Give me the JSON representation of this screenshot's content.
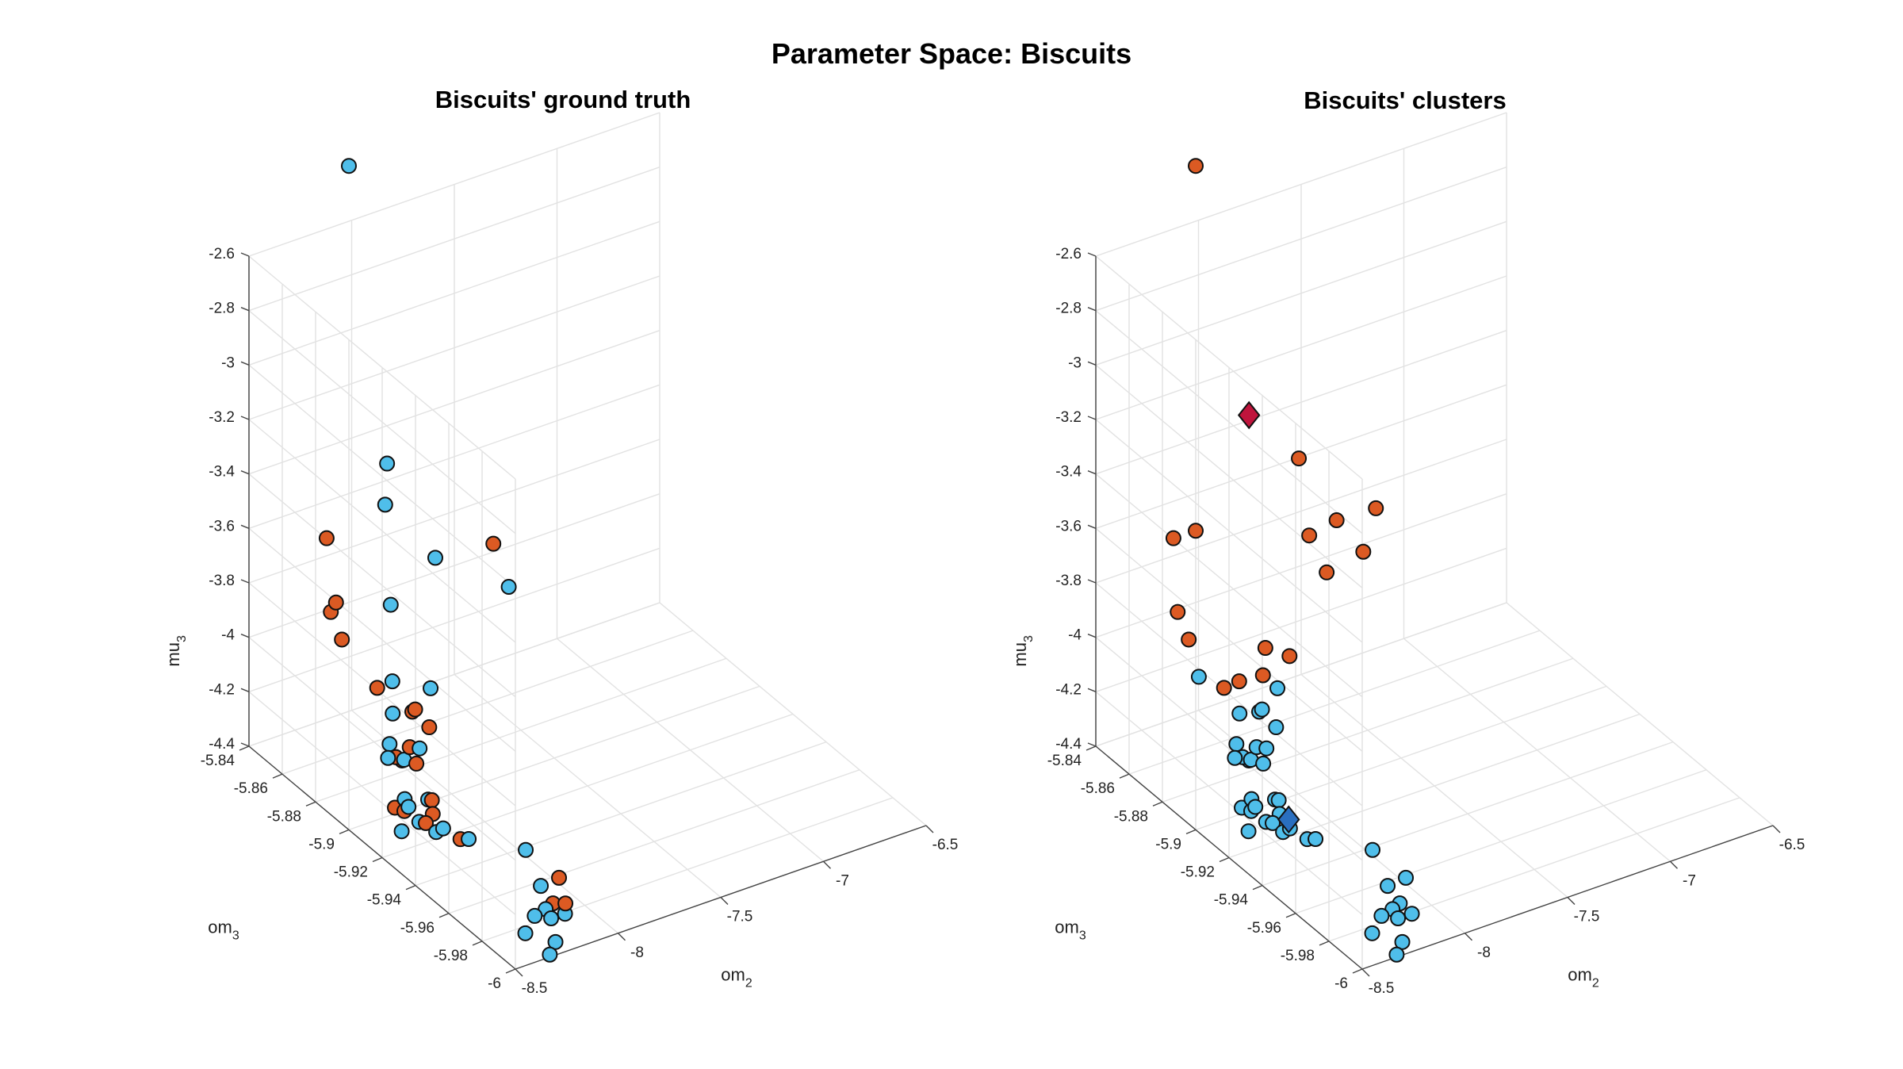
{
  "figure": {
    "title": "Parameter Space: Biscuits"
  },
  "colors": {
    "cyan": "#4FBEEA",
    "orange": "#DC5A23",
    "crimson": "#C0143C",
    "blue": "#2A6FC0"
  },
  "chart_data": [
    {
      "type": "scatter3d",
      "title": "Biscuits' ground truth",
      "xlabel": "om",
      "xlabel_sub": "2",
      "ylabel": "om",
      "ylabel_sub": "3",
      "zlabel": "mu",
      "zlabel_sub": "3",
      "xlim": [
        -8.5,
        -6.5
      ],
      "ylim": [
        -6,
        -5.84
      ],
      "zlim": [
        -4.4,
        -2.6
      ],
      "xticks": [
        "-8.5",
        "-8",
        "-7.5",
        "-7",
        "-6.5"
      ],
      "yticks": [
        "-5.84",
        "-5.86",
        "-5.88",
        "-5.9",
        "-5.92",
        "-5.94",
        "-5.96",
        "-5.98",
        "-6"
      ],
      "zticks": [
        "-2.6",
        "-2.8",
        "-3",
        "-3.2",
        "-3.4",
        "-3.6",
        "-3.8",
        "-4",
        "-4.2",
        "-4.4"
      ],
      "points": [
        {
          "x": -8.2,
          "y": -5.863,
          "z": -2.23,
          "c": "cyan"
        },
        {
          "x": -8.43,
          "y": -5.878,
          "z": -3.46,
          "c": "orange"
        },
        {
          "x": -8.08,
          "y": -5.87,
          "z": -3.47,
          "c": "cyan"
        },
        {
          "x": -7.86,
          "y": -5.844,
          "z": -3.51,
          "c": "cyan"
        },
        {
          "x": -8.45,
          "y": -5.883,
          "z": -3.7,
          "c": "orange"
        },
        {
          "x": -8.36,
          "y": -5.875,
          "z": -3.73,
          "c": "orange"
        },
        {
          "x": -8.38,
          "y": -5.881,
          "z": -3.83,
          "c": "orange"
        },
        {
          "x": -7.98,
          "y": -5.861,
          "z": -3.91,
          "c": "cyan"
        },
        {
          "x": -7.69,
          "y": -5.852,
          "z": -3.86,
          "c": "cyan"
        },
        {
          "x": -7.31,
          "y": -5.84,
          "z": -3.97,
          "c": "orange"
        },
        {
          "x": -8.2,
          "y": -5.88,
          "z": -4.06,
          "c": "orange"
        },
        {
          "x": -8.11,
          "y": -5.878,
          "z": -4.07,
          "c": "cyan"
        },
        {
          "x": -7.3,
          "y": -5.848,
          "z": -4.09,
          "c": "cyan"
        },
        {
          "x": -8.23,
          "y": -5.893,
          "z": -4.08,
          "c": "cyan"
        },
        {
          "x": -8.11,
          "y": -5.89,
          "z": -4.12,
          "c": "orange"
        },
        {
          "x": -8.08,
          "y": -5.888,
          "z": -4.13,
          "c": "orange"
        },
        {
          "x": -7.94,
          "y": -5.88,
          "z": -4.13,
          "c": "cyan"
        },
        {
          "x": -8.29,
          "y": -5.906,
          "z": -4.17,
          "c": "orange"
        },
        {
          "x": -8.31,
          "y": -5.901,
          "z": -4.13,
          "c": "cyan"
        },
        {
          "x": -8.32,
          "y": -5.906,
          "z": -4.15,
          "c": "orange"
        },
        {
          "x": -8.35,
          "y": -5.905,
          "z": -4.15,
          "c": "cyan"
        },
        {
          "x": -8.28,
          "y": -5.906,
          "z": -4.17,
          "c": "cyan"
        },
        {
          "x": -8.22,
          "y": -5.902,
          "z": -4.16,
          "c": "orange"
        },
        {
          "x": -8.22,
          "y": -5.906,
          "z": -4.2,
          "c": "orange"
        },
        {
          "x": -8.18,
          "y": -5.903,
          "z": -4.17,
          "c": "cyan"
        },
        {
          "x": -8.06,
          "y": -5.894,
          "z": -4.17,
          "c": "orange"
        },
        {
          "x": -8.43,
          "y": -5.919,
          "z": -4.24,
          "c": "orange"
        },
        {
          "x": -8.35,
          "y": -5.915,
          "z": -4.25,
          "c": "cyan"
        },
        {
          "x": -8.4,
          "y": -5.921,
          "z": -4.25,
          "c": "orange"
        },
        {
          "x": -8.38,
          "y": -5.921,
          "z": -4.24,
          "c": "cyan"
        },
        {
          "x": -8.47,
          "y": -5.928,
          "z": -4.27,
          "c": "cyan"
        },
        {
          "x": -8.26,
          "y": -5.918,
          "z": -4.26,
          "c": "cyan"
        },
        {
          "x": -8.25,
          "y": -5.919,
          "z": -4.26,
          "c": "orange"
        },
        {
          "x": -8.36,
          "y": -5.925,
          "z": -4.28,
          "c": "cyan"
        },
        {
          "x": -8.27,
          "y": -5.922,
          "z": -4.29,
          "c": "orange"
        },
        {
          "x": -8.32,
          "y": -5.924,
          "z": -4.3,
          "c": "orange"
        },
        {
          "x": -8.31,
          "y": -5.929,
          "z": -4.31,
          "c": "cyan"
        },
        {
          "x": -8.26,
          "y": -5.927,
          "z": -4.32,
          "c": "cyan"
        },
        {
          "x": -8.2,
          "y": -5.93,
          "z": -4.36,
          "c": "orange"
        },
        {
          "x": -8.16,
          "y": -5.93,
          "z": -4.37,
          "c": "cyan"
        },
        {
          "x": -8.02,
          "y": -5.947,
          "z": -4.36,
          "c": "cyan"
        },
        {
          "x": -8.06,
          "y": -5.961,
          "z": -4.41,
          "c": "cyan"
        },
        {
          "x": -8.09,
          "y": -5.972,
          "z": -4.41,
          "c": "orange"
        },
        {
          "x": -8.15,
          "y": -5.975,
          "z": -4.4,
          "c": "cyan"
        },
        {
          "x": -8.02,
          "y": -5.967,
          "z": -4.36,
          "c": "orange"
        },
        {
          "x": -8.08,
          "y": -5.978,
          "z": -4.42,
          "c": "cyan"
        },
        {
          "x": -8.33,
          "y": -5.985,
          "z": -4.39,
          "c": "cyan"
        },
        {
          "x": -8.18,
          "y": -5.982,
          "z": -4.39,
          "c": "cyan"
        },
        {
          "x": -8.07,
          "y": -5.977,
          "z": -4.39,
          "c": "orange"
        },
        {
          "x": -8.24,
          "y": -5.992,
          "z": -4.41,
          "c": "cyan"
        },
        {
          "x": -8.3,
          "y": -5.996,
          "z": -4.42,
          "c": "cyan"
        },
        {
          "x": -8.26,
          "y": -5.982,
          "z": -4.36,
          "c": "cyan"
        }
      ]
    },
    {
      "type": "scatter3d",
      "title": "Biscuits' clusters",
      "xlabel": "om",
      "xlabel_sub": "2",
      "ylabel": "om",
      "ylabel_sub": "3",
      "zlabel": "mu",
      "zlabel_sub": "3",
      "xlim": [
        -8.5,
        -6.5
      ],
      "ylim": [
        -6,
        -5.84
      ],
      "zlim": [
        -4.4,
        -2.6
      ],
      "xticks": [
        "-8.5",
        "-8",
        "-7.5",
        "-7",
        "-6.5"
      ],
      "yticks": [
        "-5.84",
        "-5.86",
        "-5.88",
        "-5.9",
        "-5.92",
        "-5.94",
        "-5.96",
        "-5.98",
        "-6"
      ],
      "zticks": [
        "-2.6",
        "-2.8",
        "-3",
        "-3.2",
        "-3.4",
        "-3.6",
        "-3.8",
        "-4",
        "-4.2",
        "-4.4"
      ],
      "points": [
        {
          "x": -8.2,
          "y": -5.863,
          "z": -2.23,
          "c": "orange"
        },
        {
          "x": -7.9,
          "y": -5.858,
          "z": -3.25,
          "c": "crimson",
          "m": "diamond"
        },
        {
          "x": -7.56,
          "y": -5.846,
          "z": -3.56,
          "c": "orange"
        },
        {
          "x": -8.43,
          "y": -5.878,
          "z": -3.46,
          "c": "orange"
        },
        {
          "x": -8.2,
          "y": -5.863,
          "z": -3.57,
          "c": "orange"
        },
        {
          "x": -8.45,
          "y": -5.883,
          "z": -3.7,
          "c": "orange"
        },
        {
          "x": -8.38,
          "y": -5.881,
          "z": -3.83,
          "c": "orange"
        },
        {
          "x": -7.36,
          "y": -5.844,
          "z": -3.85,
          "c": "orange"
        },
        {
          "x": -7.12,
          "y": -5.838,
          "z": -3.9,
          "c": "orange"
        },
        {
          "x": -7.55,
          "y": -5.851,
          "z": -3.82,
          "c": "orange"
        },
        {
          "x": -8.42,
          "y": -5.892,
          "z": -3.9,
          "c": "cyan"
        },
        {
          "x": -7.23,
          "y": -5.844,
          "z": -4.0,
          "c": "orange"
        },
        {
          "x": -7.53,
          "y": -5.859,
          "z": -3.92,
          "c": "orange"
        },
        {
          "x": -7.95,
          "y": -5.874,
          "z": -4.01,
          "c": "orange"
        },
        {
          "x": -8.2,
          "y": -5.88,
          "z": -4.06,
          "c": "orange"
        },
        {
          "x": -8.11,
          "y": -5.878,
          "z": -4.07,
          "c": "orange"
        },
        {
          "x": -7.97,
          "y": -5.875,
          "z": -4.1,
          "c": "orange"
        },
        {
          "x": -7.8,
          "y": -5.87,
          "z": -4.1,
          "c": "orange"
        },
        {
          "x": -8.23,
          "y": -5.893,
          "z": -4.08,
          "c": "cyan"
        },
        {
          "x": -8.11,
          "y": -5.89,
          "z": -4.12,
          "c": "cyan"
        },
        {
          "x": -8.08,
          "y": -5.888,
          "z": -4.13,
          "c": "cyan"
        },
        {
          "x": -7.94,
          "y": -5.88,
          "z": -4.13,
          "c": "cyan"
        },
        {
          "x": -8.29,
          "y": -5.906,
          "z": -4.17,
          "c": "cyan"
        },
        {
          "x": -8.31,
          "y": -5.901,
          "z": -4.13,
          "c": "cyan"
        },
        {
          "x": -8.32,
          "y": -5.906,
          "z": -4.15,
          "c": "cyan"
        },
        {
          "x": -8.35,
          "y": -5.905,
          "z": -4.15,
          "c": "cyan"
        },
        {
          "x": -8.28,
          "y": -5.906,
          "z": -4.17,
          "c": "cyan"
        },
        {
          "x": -8.22,
          "y": -5.902,
          "z": -4.16,
          "c": "cyan"
        },
        {
          "x": -8.22,
          "y": -5.906,
          "z": -4.2,
          "c": "cyan"
        },
        {
          "x": -8.18,
          "y": -5.903,
          "z": -4.17,
          "c": "cyan"
        },
        {
          "x": -8.06,
          "y": -5.894,
          "z": -4.17,
          "c": "cyan"
        },
        {
          "x": -8.43,
          "y": -5.919,
          "z": -4.24,
          "c": "cyan"
        },
        {
          "x": -8.35,
          "y": -5.915,
          "z": -4.25,
          "c": "cyan"
        },
        {
          "x": -8.4,
          "y": -5.921,
          "z": -4.25,
          "c": "cyan"
        },
        {
          "x": -8.38,
          "y": -5.921,
          "z": -4.24,
          "c": "cyan"
        },
        {
          "x": -8.47,
          "y": -5.928,
          "z": -4.27,
          "c": "cyan"
        },
        {
          "x": -8.26,
          "y": -5.918,
          "z": -4.26,
          "c": "cyan"
        },
        {
          "x": -8.25,
          "y": -5.919,
          "z": -4.26,
          "c": "cyan"
        },
        {
          "x": -8.36,
          "y": -5.925,
          "z": -4.28,
          "c": "cyan"
        },
        {
          "x": -8.27,
          "y": -5.922,
          "z": -4.29,
          "c": "cyan"
        },
        {
          "x": -8.32,
          "y": -5.924,
          "z": -4.3,
          "c": "cyan"
        },
        {
          "x": -8.31,
          "y": -5.929,
          "z": -4.31,
          "c": "cyan"
        },
        {
          "x": -8.26,
          "y": -5.927,
          "z": -4.32,
          "c": "cyan"
        },
        {
          "x": -8.2,
          "y": -5.93,
          "z": -4.36,
          "c": "cyan"
        },
        {
          "x": -8.16,
          "y": -5.93,
          "z": -4.37,
          "c": "cyan"
        },
        {
          "x": -8.25,
          "y": -5.925,
          "z": -4.3,
          "c": "blue",
          "m": "diamond"
        },
        {
          "x": -8.02,
          "y": -5.947,
          "z": -4.36,
          "c": "cyan"
        },
        {
          "x": -8.06,
          "y": -5.961,
          "z": -4.41,
          "c": "cyan"
        },
        {
          "x": -8.09,
          "y": -5.972,
          "z": -4.41,
          "c": "cyan"
        },
        {
          "x": -8.15,
          "y": -5.975,
          "z": -4.4,
          "c": "cyan"
        },
        {
          "x": -8.02,
          "y": -5.967,
          "z": -4.36,
          "c": "cyan"
        },
        {
          "x": -8.08,
          "y": -5.978,
          "z": -4.42,
          "c": "cyan"
        },
        {
          "x": -8.33,
          "y": -5.985,
          "z": -4.39,
          "c": "cyan"
        },
        {
          "x": -8.18,
          "y": -5.982,
          "z": -4.39,
          "c": "cyan"
        },
        {
          "x": -8.24,
          "y": -5.992,
          "z": -4.41,
          "c": "cyan"
        },
        {
          "x": -8.3,
          "y": -5.996,
          "z": -4.42,
          "c": "cyan"
        },
        {
          "x": -8.26,
          "y": -5.982,
          "z": -4.36,
          "c": "cyan"
        }
      ]
    }
  ]
}
